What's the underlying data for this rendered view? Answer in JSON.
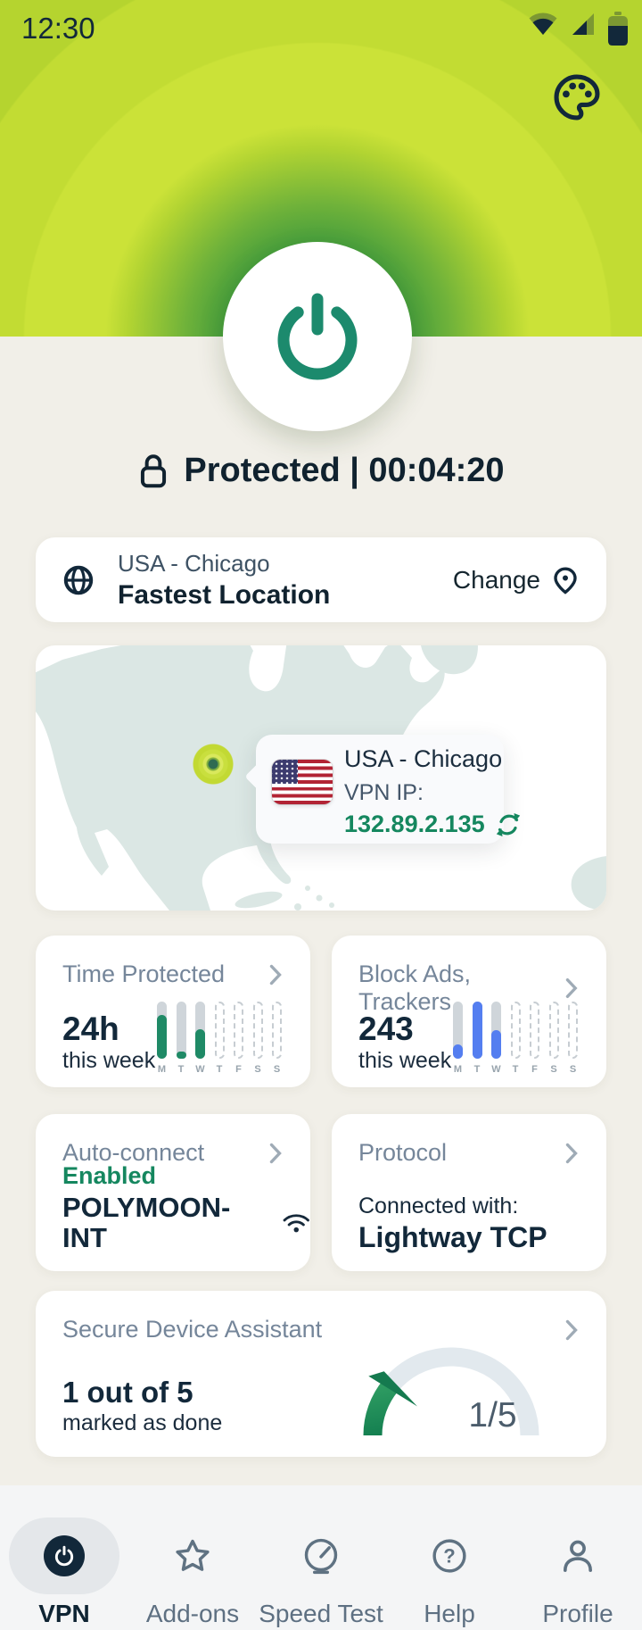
{
  "status_bar": {
    "time": "12:30"
  },
  "header": {
    "status_line": "Protected | 00:04:20"
  },
  "location_card": {
    "location": "USA - Chicago",
    "subtitle": "Fastest Location",
    "change_label": "Change"
  },
  "map_card": {
    "tooltip_title": "USA - Chicago",
    "ip_label": "VPN IP:",
    "ip_value": "132.89.2.135"
  },
  "stats": {
    "time_protected": {
      "title": "Time Protected",
      "value": "24h",
      "caption": "this week",
      "chart": {
        "type": "bar",
        "days": [
          "M",
          "T",
          "W",
          "T",
          "F",
          "S",
          "S"
        ],
        "values": [
          0.77,
          0.13,
          0.52,
          0,
          0,
          0,
          0
        ],
        "tracked": [
          true,
          true,
          true,
          false,
          false,
          false,
          false
        ],
        "color": "#1f8a66"
      }
    },
    "block_ads": {
      "title": "Block Ads, Trackers",
      "value": "243",
      "caption": "this week",
      "chart": {
        "type": "bar",
        "days": [
          "M",
          "T",
          "W",
          "T",
          "F",
          "S",
          "S"
        ],
        "values": [
          0.25,
          1,
          0.5,
          0,
          0,
          0,
          0
        ],
        "tracked": [
          true,
          true,
          true,
          false,
          false,
          false,
          false
        ],
        "color": "#547ef0"
      }
    }
  },
  "auto_connect": {
    "title": "Auto-connect",
    "status": "Enabled",
    "network": "POLYMOON-INT"
  },
  "protocol": {
    "title": "Protocol",
    "caption": "Connected with:",
    "value": "Lightway TCP"
  },
  "assistant": {
    "title": "Secure Device Assistant",
    "value": "1 out of 5",
    "caption": "marked as done",
    "gauge_label": "1/5",
    "progress": 0.22
  },
  "nav": {
    "items": [
      {
        "label": "VPN",
        "active": true
      },
      {
        "label": "Add-ons",
        "active": false
      },
      {
        "label": "Speed Test",
        "active": false
      },
      {
        "label": "Help",
        "active": false
      },
      {
        "label": "Profile",
        "active": false
      }
    ]
  },
  "colors": {
    "accent_green": "#15875f",
    "header_lime": "#c0da32",
    "bar_blue": "#547ef0",
    "bar_green": "#1f8a66",
    "navy": "#12283a"
  }
}
